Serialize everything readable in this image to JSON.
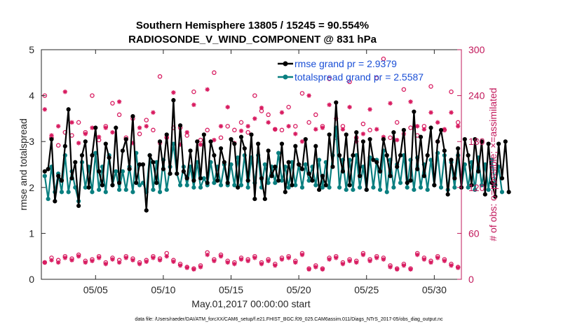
{
  "chart_data": {
    "type": "line",
    "title_line1": "Southern Hemisphere 13805 / 15245 = 90.554%",
    "title_line2": "RADIOSONDE_V_WIND_COMPONENT @ 831 hPa",
    "xlabel": "May.01,2017 00:00:00 start",
    "ylabel": "rmse and totalspread",
    "ylabel_right": "# of obs: o=possible; ×=assimilated",
    "footer": "data file: /Users/raeder/DAI/ATM_forcXX/CAM6_setup/f.e21.FHIST_BGC.f09_025.CAM6assim.011/Diags_NTrS_2017-05/obs_diag_output.nc",
    "xlim": [
      1,
      32
    ],
    "ylim": [
      0,
      5
    ],
    "ylim_right": [
      0,
      300
    ],
    "x_ticks": [
      5,
      10,
      15,
      20,
      25,
      30
    ],
    "x_tick_labels": [
      "05/05",
      "05/10",
      "05/15",
      "05/20",
      "05/25",
      "05/30"
    ],
    "y_ticks": [
      0,
      1,
      2,
      3,
      4,
      5
    ],
    "y_tick_labels": [
      "0",
      "1",
      "2",
      "3",
      "4",
      "5"
    ],
    "y_right_ticks": [
      0,
      60,
      120,
      180,
      240,
      300
    ],
    "y_right_tick_labels": [
      "0",
      "60",
      "120",
      "180",
      "240",
      "300"
    ],
    "x_start": 1.25,
    "x_step": 0.25,
    "series": [
      {
        "name": "rmse grand pr = 2.9379",
        "color": "#000000",
        "values": [
          2.35,
          2.4,
          3.05,
          1.7,
          2.25,
          2.15,
          2.9,
          3.7,
          2.2,
          2.55,
          1.6,
          2.7,
          3.0,
          2.0,
          2.7,
          3.3,
          2.35,
          2.05,
          2.95,
          2.65,
          2.05,
          3.3,
          2.1,
          2.8,
          3.05,
          2.4,
          3.55,
          2.1,
          2.5,
          2.5,
          1.5,
          2.7,
          2.55,
          2.1,
          3.0,
          2.4,
          3.15,
          2.3,
          3.9,
          2.3,
          3.35,
          2.35,
          2.2,
          2.8,
          2.15,
          3.0,
          2.2,
          3.15,
          2.1,
          3.0,
          2.7,
          2.15,
          2.85,
          2.55,
          2.1,
          3.05,
          2.95,
          2.0,
          3.1,
          2.85,
          2.15,
          3.15,
          1.75,
          2.95,
          2.2,
          1.75,
          2.8,
          2.25,
          2.45,
          2.15,
          2.95,
          1.9,
          2.55,
          2.05,
          2.9,
          2.5,
          2.4,
          3.05,
          2.3,
          2.15,
          2.9,
          1.95,
          2.25,
          2.05,
          3.15,
          2.45,
          3.85,
          2.7,
          2.35,
          3.15,
          2.05,
          2.7,
          3.2,
          2.25,
          3.0,
          1.95,
          3.05,
          2.6,
          2.55,
          2.35,
          3.05,
          2.7,
          2.25,
          3.2,
          2.45,
          2.7,
          3.25,
          2.1,
          2.15,
          3.65,
          2.4,
          3.1,
          2.25,
          2.7,
          3.3,
          2.05,
          3.0,
          3.25,
          2.8,
          1.85,
          2.6,
          2.2,
          2.85,
          2.0,
          3.05,
          2.7,
          2.05,
          3.05,
          2.35,
          3.0,
          1.85,
          2.95,
          2.1,
          1.8,
          2.95,
          2.2,
          3.0,
          1.9
        ]
      },
      {
        "name": "totalspread grand pr = 2.5587",
        "color": "#0a7f80",
        "values": [
          2.25,
          1.75,
          2.45,
          1.9,
          2.3,
          1.9,
          2.7,
          1.9,
          2.35,
          2.0,
          1.7,
          2.55,
          2.0,
          2.45,
          1.9,
          2.75,
          1.95,
          2.45,
          1.9,
          2.7,
          2.05,
          2.35,
          1.95,
          2.35,
          1.95,
          2.45,
          1.9,
          2.75,
          2.05,
          2.1,
          1.9,
          2.7,
          1.95,
          2.55,
          1.9,
          2.6,
          1.95,
          2.45,
          2.95,
          2.3,
          2.05,
          2.45,
          2.05,
          2.45,
          2.0,
          2.55,
          2.0,
          2.2,
          2.05,
          2.55,
          2.1,
          2.45,
          2.05,
          2.5,
          2.05,
          2.5,
          2.05,
          2.65,
          2.05,
          2.7,
          2.0,
          2.65,
          2.1,
          2.7,
          2.0,
          2.5,
          2.1,
          2.45,
          2.1,
          2.75,
          2.15,
          2.45,
          2.0,
          2.55,
          2.05,
          2.5,
          2.0,
          2.5,
          2.15,
          2.45,
          2.05,
          2.6,
          2.0,
          2.55,
          2.0,
          2.7,
          3.3,
          2.0,
          2.6,
          1.95,
          2.6,
          1.95,
          2.7,
          2.0,
          2.45,
          1.95,
          2.65,
          2.0,
          2.6,
          1.95,
          2.8,
          1.9,
          2.6,
          2.0,
          2.5,
          2.1,
          2.7,
          2.0,
          2.6,
          1.95,
          2.65,
          2.0,
          2.5,
          1.95,
          2.6,
          2.05,
          2.75,
          2.0,
          2.7,
          1.95,
          2.55,
          2.0,
          2.7,
          2.0,
          2.5,
          2.0,
          2.55,
          1.95,
          2.65,
          2.05,
          2.5,
          1.95,
          2.6,
          2.05,
          2.45,
          1.9
        ]
      }
    ],
    "obs_possible": [
      240,
      195,
      185,
      210,
      175,
      255,
      192,
      205,
      188,
      275,
      205,
      200,
      192,
      185,
      240,
      198,
      182,
      262,
      200,
      188,
      230,
      175,
      215,
      265,
      185,
      178,
      210,
      285,
      190,
      200,
      208,
      275,
      195,
      180,
      265,
      203,
      185,
      235,
      198,
      178,
      198,
      268,
      188,
      200,
      245,
      195,
      182,
      240,
      195,
      215,
      270,
      190,
      185,
      242,
      200,
      235,
      195,
      188,
      205,
      265,
      192,
      202,
      240,
      188,
      220,
      198,
      215,
      178,
      196,
      253,
      195,
      183,
      225,
      270,
      200,
      188,
      243,
      195,
      205,
      280,
      215,
      248,
      200,
      188,
      262,
      195,
      185,
      255,
      200,
      180,
      258,
      197,
      185,
      240,
      203,
      260,
      195,
      180,
      263,
      198,
      288,
      192,
      185,
      243,
      205,
      195,
      248,
      190,
      198,
      272,
      188,
      245,
      200,
      178,
      252,
      192,
      180,
      262,
      195,
      188,
      245,
      200,
      205,
      245,
      192,
      178,
      268,
      200,
      185,
      245,
      198,
      190,
      240,
      180,
      215,
      268,
      198,
      245
    ],
    "obs_assimilated": [
      222,
      230,
      188,
      178,
      200,
      182,
      245,
      195,
      205,
      185,
      178,
      228,
      190,
      178,
      198,
      232,
      186,
      176,
      198,
      246,
      192,
      185,
      232,
      176,
      183,
      240,
      178,
      190,
      198,
      244,
      200,
      175,
      218,
      190,
      178,
      225,
      186,
      198,
      244,
      188,
      176,
      232,
      192,
      183,
      228,
      180,
      176,
      198,
      248,
      188,
      182,
      232,
      200,
      186,
      225,
      198,
      178,
      210,
      194,
      230,
      200,
      178,
      210,
      186,
      224,
      190,
      205,
      232,
      196,
      182,
      218,
      185,
      200,
      234,
      190,
      210,
      180,
      196,
      240,
      186,
      196,
      226,
      198,
      190,
      228,
      185,
      210,
      230,
      196,
      186,
      225,
      200,
      180,
      235,
      190,
      198,
      222,
      185,
      196,
      210,
      186,
      208,
      230,
      196,
      182,
      224,
      190,
      196,
      232,
      186,
      200,
      226,
      196,
      182,
      218,
      190,
      205,
      224,
      196,
      186,
      218,
      190,
      200,
      228,
      185,
      178,
      218,
      196,
      182,
      220,
      190,
      200,
      225,
      185,
      198,
      220,
      190,
      185
    ],
    "obs_possible_low": [
      22,
      12,
      28,
      15,
      25,
      18,
      30,
      14,
      27,
      20,
      32,
      15,
      24,
      12,
      26,
      18,
      30,
      16,
      22,
      14,
      28,
      17,
      25,
      15,
      30,
      13,
      27,
      18,
      22,
      14,
      25,
      16,
      30,
      15,
      27,
      20,
      34,
      18,
      25,
      38,
      20,
      28,
      16,
      24,
      14,
      30,
      18,
      22,
      35,
      16,
      26,
      20,
      32,
      14,
      24,
      18,
      22,
      12,
      28,
      16,
      26,
      14,
      30,
      18,
      22,
      12,
      26,
      10,
      20,
      14,
      28,
      18,
      30,
      38,
      24,
      18,
      34,
      22,
      14,
      32,
      18,
      24,
      14,
      20,
      28,
      16,
      30,
      36,
      22,
      14,
      26,
      18,
      24,
      16,
      34,
      18,
      26,
      12,
      30,
      20,
      28,
      36,
      18,
      24,
      14,
      30,
      20,
      26,
      14,
      22,
      34,
      18,
      28,
      16,
      24,
      14,
      30,
      18,
      26,
      14,
      20,
      32,
      16,
      24,
      12,
      36,
      18,
      22,
      14,
      28,
      18,
      24,
      32,
      16,
      28,
      14,
      22,
      26
    ],
    "obs_assimilated_low": [
      22,
      12,
      25,
      14,
      22,
      18,
      28,
      14,
      25,
      18,
      30,
      14,
      22,
      12,
      24,
      16,
      28,
      15,
      20,
      13,
      26,
      15,
      22,
      14,
      28,
      12,
      25,
      16,
      20,
      13,
      23,
      15,
      28,
      14,
      25,
      18,
      30,
      16,
      23,
      36,
      18,
      26,
      15,
      22,
      13,
      28,
      16,
      20,
      32,
      15,
      24,
      18,
      30,
      13,
      22,
      16,
      20,
      11,
      26,
      15,
      24,
      13,
      28,
      16,
      20,
      11,
      24,
      9,
      18,
      13,
      26,
      16,
      28,
      35,
      22,
      16,
      32,
      20,
      13,
      30,
      16,
      22,
      13,
      18,
      26,
      15,
      28,
      34,
      20,
      13,
      24,
      16,
      22,
      15,
      32,
      16,
      24,
      11,
      28,
      18,
      26,
      34,
      16,
      22,
      13,
      28,
      18,
      24,
      13,
      20,
      32,
      16,
      26,
      15,
      22,
      13,
      28,
      16,
      24,
      13,
      18,
      30,
      15,
      22,
      11,
      34,
      16,
      20,
      13,
      26,
      16,
      22,
      30,
      15,
      26,
      13,
      20,
      24
    ],
    "colors": {
      "axes_right": "#c2185b",
      "obs": "#d81b60",
      "legend_text": "#1a4fd6"
    }
  }
}
